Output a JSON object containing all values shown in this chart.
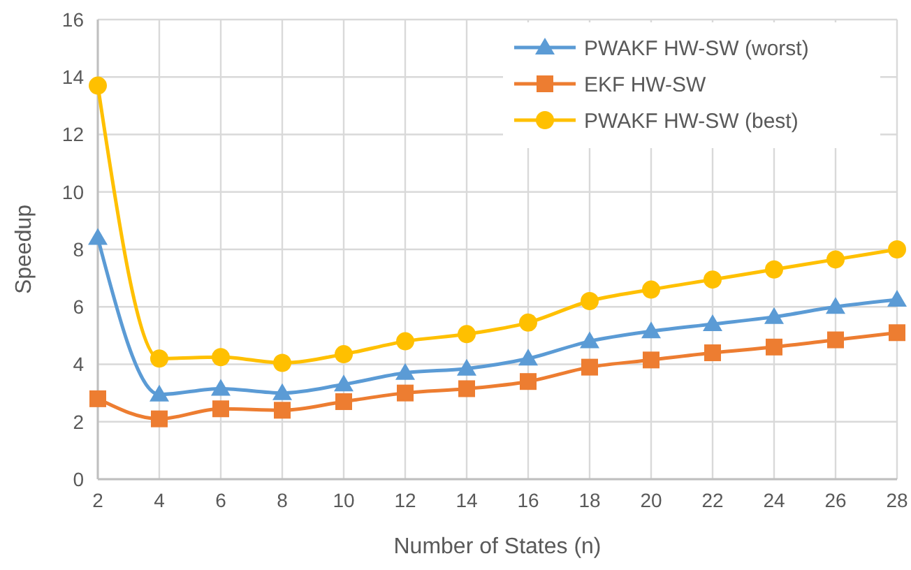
{
  "chart_data": {
    "type": "line",
    "xlabel": "Number of States (n)",
    "ylabel": "Speedup",
    "x": [
      2,
      4,
      6,
      8,
      10,
      12,
      14,
      16,
      18,
      20,
      22,
      24,
      26,
      28
    ],
    "xlim": [
      2,
      28
    ],
    "xticks": [
      2,
      4,
      6,
      8,
      10,
      12,
      14,
      16,
      18,
      20,
      22,
      24,
      26,
      28
    ],
    "ylim": [
      0,
      16
    ],
    "yticks": [
      0,
      2,
      4,
      6,
      8,
      10,
      12,
      14,
      16
    ],
    "grid": true,
    "legend": "top right",
    "line_style": "solid",
    "series": [
      {
        "name": "PWAKF HW-SW (worst)",
        "color": "#5b9bd5",
        "marker": "triangle",
        "values": [
          8.4,
          2.95,
          3.15,
          3.0,
          3.3,
          3.7,
          3.85,
          4.2,
          4.8,
          5.15,
          5.4,
          5.65,
          6.0,
          6.25
        ]
      },
      {
        "name": "EKF HW-SW",
        "color": "#ed7d31",
        "marker": "square",
        "values": [
          2.8,
          2.1,
          2.45,
          2.4,
          2.7,
          3.0,
          3.15,
          3.4,
          3.9,
          4.15,
          4.4,
          4.6,
          4.85,
          5.1
        ]
      },
      {
        "name": "PWAKF HW-SW (best)",
        "color": "#ffc000",
        "marker": "circle",
        "values": [
          13.7,
          4.2,
          4.25,
          4.05,
          4.35,
          4.8,
          5.05,
          5.45,
          6.2,
          6.6,
          6.95,
          7.3,
          7.65,
          8.0
        ]
      }
    ]
  }
}
